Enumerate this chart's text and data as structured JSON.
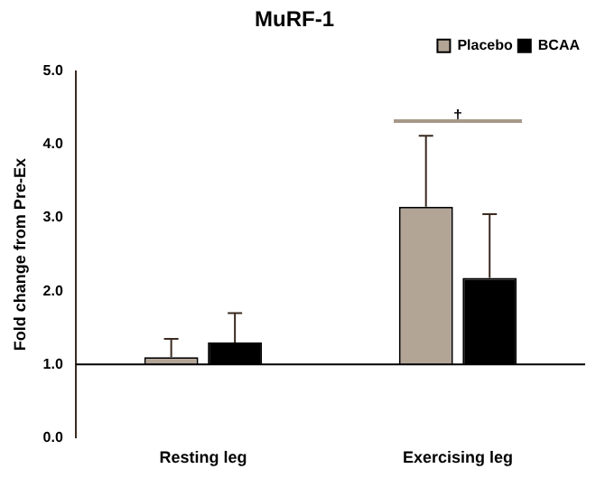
{
  "chart_data": {
    "type": "bar",
    "title": "MuRF-1",
    "ylabel": "Fold change from Pre-Ex",
    "categories": [
      "Resting leg",
      "Exercising leg"
    ],
    "series": [
      {
        "name": "Placebo",
        "color": "#b3a596",
        "base": [
          1,
          1
        ],
        "values": [
          0.1,
          2.15
        ],
        "errors": [
          [
            1.1,
            1.35
          ],
          [
            3.15,
            4.12
          ]
        ]
      },
      {
        "name": "BCAA",
        "color": "#000000",
        "base": [
          1,
          1
        ],
        "values": [
          0.3,
          1.18
        ],
        "errors": [
          [
            1.3,
            1.7
          ],
          [
            2.18,
            3.05
          ]
        ]
      }
    ],
    "ylim": [
      0,
      5
    ],
    "yticks": [
      {
        "value": 0,
        "label": "0.0"
      },
      {
        "value": 1,
        "label": "1.0"
      },
      {
        "value": 2,
        "label": "2.0"
      },
      {
        "value": 3,
        "label": "3.0"
      },
      {
        "value": 4,
        "label": "4.0"
      },
      {
        "value": 5,
        "label": "5.0"
      }
    ],
    "ref_lines": [
      {
        "axis": "y",
        "value": 1,
        "color": "#000000"
      }
    ],
    "annotations": [
      "†"
    ],
    "grid": false,
    "legend": "top right"
  }
}
